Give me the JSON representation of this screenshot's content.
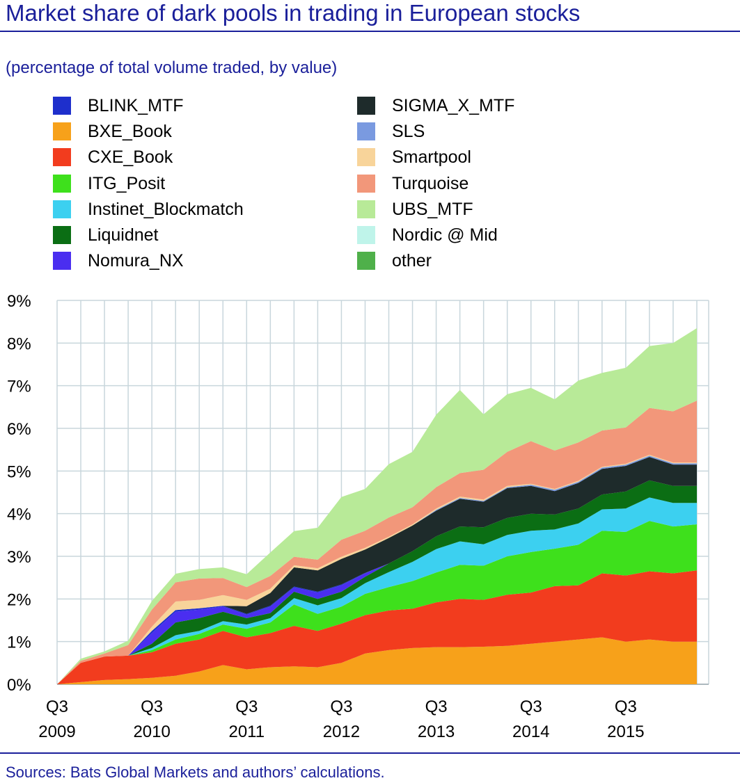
{
  "title": "Market share of dark pools in trading in European stocks",
  "subtitle": "(percentage of total volume traded, by value)",
  "source": "Sources: Bats Global Markets and authors’ calculations.",
  "chart_data": {
    "type": "area",
    "stacked": true,
    "title": "Market share of dark pools in trading in European stocks",
    "ylabel": "(percentage of total volume traded, by value)",
    "ylim": [
      0,
      9
    ],
    "yticks": [
      0,
      1,
      2,
      3,
      4,
      5,
      6,
      7,
      8,
      9
    ],
    "ytick_labels": [
      "0%",
      "1%",
      "2%",
      "3%",
      "4%",
      "5%",
      "6%",
      "7%",
      "8%",
      "9%"
    ],
    "xtick_labels": [
      {
        "quarter": "Q3",
        "year": "2009",
        "index": 0
      },
      {
        "quarter": "Q3",
        "year": "2010",
        "index": 4
      },
      {
        "quarter": "Q3",
        "year": "2011",
        "index": 8
      },
      {
        "quarter": "Q3",
        "year": "2012",
        "index": 12
      },
      {
        "quarter": "Q3",
        "year": "2013",
        "index": 16
      },
      {
        "quarter": "Q3",
        "year": "2014",
        "index": 20
      },
      {
        "quarter": "Q3",
        "year": "2015",
        "index": 24
      }
    ],
    "n_points": 28,
    "grid": true,
    "legend_position": "top",
    "series": [
      {
        "name": "BXE_Book",
        "color": "#f7a11a",
        "values": [
          0,
          0.05,
          0.1,
          0.12,
          0.15,
          0.2,
          0.3,
          0.45,
          0.35,
          0.4,
          0.42,
          0.4,
          0.5,
          0.72,
          0.8,
          0.85,
          0.87,
          0.87,
          0.88,
          0.9,
          0.95,
          1.0,
          1.05,
          1.1,
          1.0,
          1.05,
          1.0,
          1.0
        ]
      },
      {
        "name": "CXE_Book",
        "color": "#f23c1e",
        "values": [
          0,
          0.45,
          0.55,
          0.55,
          0.6,
          0.75,
          0.75,
          0.8,
          0.75,
          0.8,
          0.95,
          0.85,
          0.92,
          0.9,
          0.93,
          0.92,
          1.05,
          1.13,
          1.1,
          1.2,
          1.2,
          1.3,
          1.27,
          1.5,
          1.55,
          1.6,
          1.6,
          1.67
        ]
      },
      {
        "name": "ITG_Posit",
        "color": "#3ee01c",
        "values": [
          0,
          0,
          0,
          0,
          0.05,
          0.1,
          0.13,
          0.15,
          0.2,
          0.25,
          0.5,
          0.4,
          0.4,
          0.5,
          0.55,
          0.65,
          0.7,
          0.8,
          0.8,
          0.9,
          0.95,
          0.88,
          0.95,
          1.0,
          1.02,
          1.18,
          1.1,
          1.08
        ]
      },
      {
        "name": "Instinet_Blockmatch",
        "color": "#3cd0f0",
        "values": [
          0,
          0,
          0,
          0,
          0.05,
          0.1,
          0.07,
          0.08,
          0.1,
          0.1,
          0.15,
          0.2,
          0.2,
          0.25,
          0.35,
          0.45,
          0.55,
          0.55,
          0.5,
          0.5,
          0.5,
          0.45,
          0.5,
          0.5,
          0.55,
          0.55,
          0.55,
          0.5
        ]
      },
      {
        "name": "Liquidnet",
        "color": "#0b6e14",
        "values": [
          0,
          0,
          0,
          0,
          0.1,
          0.3,
          0.3,
          0.22,
          0.15,
          0.12,
          0.15,
          0.15,
          0.15,
          0.15,
          0.2,
          0.25,
          0.3,
          0.35,
          0.4,
          0.4,
          0.4,
          0.35,
          0.35,
          0.35,
          0.4,
          0.4,
          0.4,
          0.4
        ]
      },
      {
        "name": "Nomura_NX",
        "color": "#4a2ef0",
        "values": [
          0,
          0,
          0,
          0,
          0.25,
          0.25,
          0.2,
          0.12,
          0.08,
          0.15,
          0.1,
          0.15,
          0.15,
          0.08,
          0,
          0,
          0,
          0,
          0,
          0,
          0,
          0,
          0,
          0,
          0,
          0,
          0,
          0
        ]
      },
      {
        "name": "BLINK_MTF",
        "color": "#1e2fcc",
        "values": [
          0,
          0,
          0,
          0,
          0.05,
          0.04,
          0.03,
          0.02,
          0.02,
          0.02,
          0.02,
          0.02,
          0.02,
          0.01,
          0,
          0,
          0,
          0,
          0,
          0,
          0,
          0,
          0,
          0,
          0,
          0,
          0,
          0
        ]
      },
      {
        "name": "SIGMA_X_MTF",
        "color": "#1e2b2b",
        "values": [
          0,
          0,
          0,
          0,
          0,
          0,
          0,
          0,
          0.18,
          0.3,
          0.45,
          0.5,
          0.6,
          0.55,
          0.6,
          0.6,
          0.6,
          0.65,
          0.6,
          0.7,
          0.65,
          0.55,
          0.6,
          0.6,
          0.6,
          0.55,
          0.5,
          0.5
        ]
      },
      {
        "name": "SLS",
        "color": "#7a9ae0",
        "values": [
          0,
          0,
          0,
          0,
          0,
          0,
          0,
          0,
          0,
          0,
          0,
          0,
          0,
          0,
          0,
          0,
          0.02,
          0.02,
          0.02,
          0.02,
          0.03,
          0.03,
          0.03,
          0.03,
          0.03,
          0.03,
          0.03,
          0.03
        ]
      },
      {
        "name": "Smartpool",
        "color": "#f8d49a",
        "values": [
          0,
          0,
          0,
          0,
          0.1,
          0.2,
          0.2,
          0.25,
          0.15,
          0.1,
          0.05,
          0.05,
          0.05,
          0.04,
          0.03,
          0.03,
          0.03,
          0.03,
          0.03,
          0.03,
          0.02,
          0.02,
          0.02,
          0.02,
          0.02,
          0.02,
          0.02,
          0.02
        ]
      },
      {
        "name": "Turquoise",
        "color": "#f2977a",
        "values": [
          0,
          0.05,
          0.07,
          0.25,
          0.4,
          0.45,
          0.5,
          0.4,
          0.3,
          0.3,
          0.2,
          0.2,
          0.4,
          0.4,
          0.45,
          0.4,
          0.5,
          0.55,
          0.7,
          0.8,
          1.0,
          0.9,
          0.9,
          0.85,
          0.85,
          1.1,
          1.2,
          1.45
        ]
      },
      {
        "name": "UBS_MTF",
        "color": "#b8ea98",
        "values": [
          0,
          0.05,
          0.05,
          0.1,
          0.2,
          0.2,
          0.22,
          0.25,
          0.3,
          0.55,
          0.6,
          0.75,
          1.0,
          0.98,
          1.25,
          1.3,
          1.7,
          1.95,
          1.3,
          1.35,
          1.25,
          1.2,
          1.45,
          1.35,
          1.4,
          1.45,
          1.6,
          1.7
        ]
      },
      {
        "name": "Nordic @ Mid",
        "color": "#bff4ea",
        "values": [
          0,
          0,
          0,
          0,
          0,
          0,
          0,
          0,
          0,
          0,
          0,
          0,
          0,
          0,
          0,
          0,
          0,
          0,
          0,
          0,
          0,
          0,
          0,
          0,
          0,
          0,
          0,
          0
        ]
      },
      {
        "name": "other",
        "color": "#4fb04a",
        "values": [
          0,
          0,
          0,
          0,
          0,
          0,
          0,
          0,
          0,
          0,
          0,
          0,
          0,
          0,
          0,
          0,
          0,
          0,
          0,
          0,
          0,
          0,
          0,
          0,
          0,
          0,
          0,
          0
        ]
      }
    ]
  },
  "legend": {
    "left": [
      {
        "label": "BLINK_MTF",
        "color": "#1e2fcc"
      },
      {
        "label": "BXE_Book",
        "color": "#f7a11a"
      },
      {
        "label": "CXE_Book",
        "color": "#f23c1e"
      },
      {
        "label": "ITG_Posit",
        "color": "#3ee01c"
      },
      {
        "label": "Instinet_Blockmatch",
        "color": "#3cd0f0"
      },
      {
        "label": "Liquidnet",
        "color": "#0b6e14"
      },
      {
        "label": "Nomura_NX",
        "color": "#4a2ef0"
      }
    ],
    "right": [
      {
        "label": "SIGMA_X_MTF",
        "color": "#1e2b2b"
      },
      {
        "label": "SLS",
        "color": "#7a9ae0"
      },
      {
        "label": "Smartpool",
        "color": "#f8d49a"
      },
      {
        "label": "Turquoise",
        "color": "#f2977a"
      },
      {
        "label": "UBS_MTF",
        "color": "#b8ea98"
      },
      {
        "label": "Nordic @ Mid",
        "color": "#bff4ea"
      },
      {
        "label": "other",
        "color": "#4fb04a"
      }
    ]
  },
  "colors": {
    "brand": "#1a1f9a",
    "grid": "#c8d6dc"
  }
}
